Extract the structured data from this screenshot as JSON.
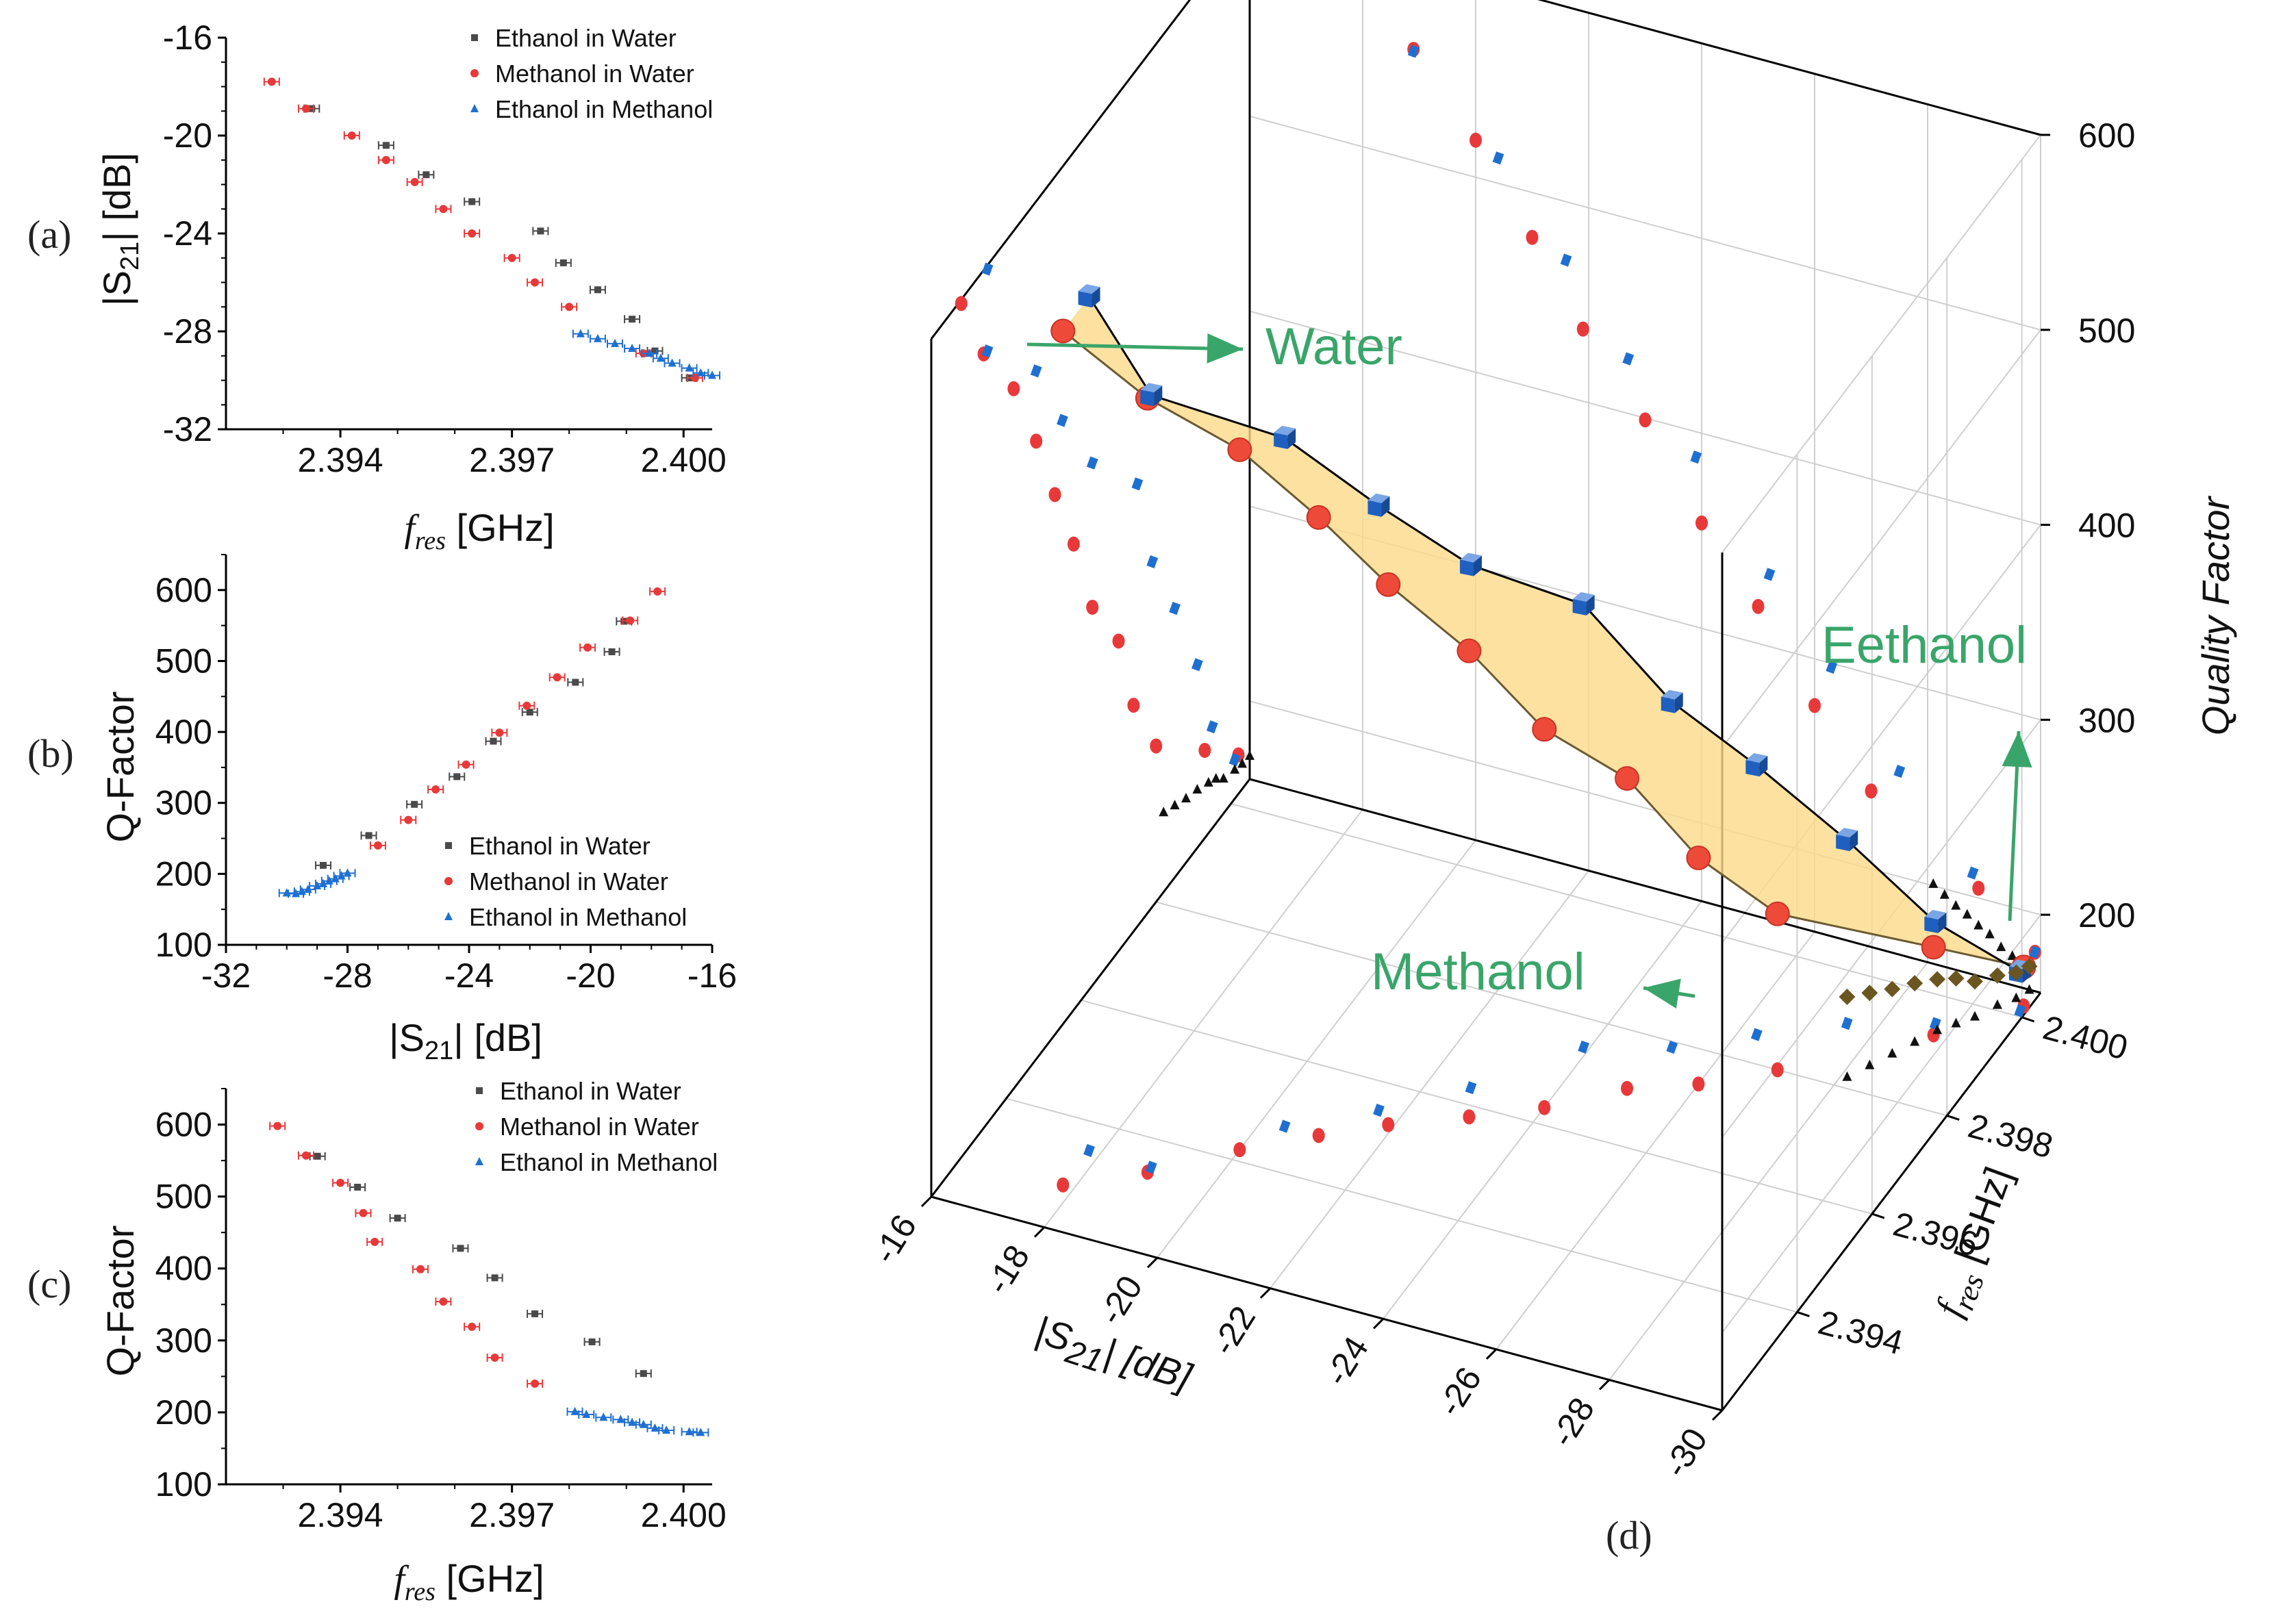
{
  "colors": {
    "ethanol_water": "#4a4a4a",
    "methanol_water": "#e8393a",
    "ethanol_methanol": "#1f6fd1",
    "annotation_green": "#3aa56a",
    "surface_fill": "#fbd98a"
  },
  "chart_data": [
    {
      "id": "a",
      "panel_label": "(a)",
      "type": "scatter",
      "xlabel_italic": "f",
      "xlabel_sub": "res",
      "xlabel_unit": "[GHz]",
      "ylabel_main": "|S",
      "ylabel_sub": "21",
      "ylabel_tail": "| [dB]",
      "xlim": [
        2.392,
        2.4005
      ],
      "ylim": [
        -32,
        -16
      ],
      "xticks": [
        "2.394",
        "2.397",
        "2.400"
      ],
      "yticks": [
        "-16",
        "-20",
        "-24",
        "-28",
        "-32"
      ],
      "legend": [
        "Ethanol in Water",
        "Methanol in Water",
        "Ethanol in Methanol"
      ],
      "series": [
        {
          "name": "Ethanol in Water",
          "x": [
            2.3935,
            2.3948,
            2.3955,
            2.3963,
            2.3975,
            2.3979,
            2.3985,
            2.3991,
            2.3995,
            2.4001
          ],
          "y": [
            -18.9,
            -20.4,
            -21.6,
            -22.7,
            -23.9,
            -25.2,
            -26.3,
            -27.5,
            -28.8,
            -29.9
          ]
        },
        {
          "name": "Methanol in Water",
          "x": [
            2.3928,
            2.3934,
            2.3942,
            2.3948,
            2.3953,
            2.3958,
            2.3963,
            2.397,
            2.3974,
            2.398,
            2.3993,
            2.4002
          ],
          "y": [
            -17.8,
            -18.9,
            -20.0,
            -21.0,
            -21.9,
            -23.0,
            -24.0,
            -25.0,
            -26.0,
            -27.0,
            -28.9,
            -29.9
          ]
        },
        {
          "name": "Ethanol in Methanol",
          "x": [
            2.3982,
            2.3985,
            2.3988,
            2.3991,
            2.3994,
            2.3996,
            2.3998,
            2.4001,
            2.4003,
            2.4005
          ],
          "y": [
            -28.1,
            -28.3,
            -28.5,
            -28.7,
            -28.9,
            -29.1,
            -29.3,
            -29.5,
            -29.7,
            -29.8
          ]
        }
      ]
    },
    {
      "id": "b",
      "panel_label": "(b)",
      "type": "scatter",
      "xlabel_main": "|S",
      "xlabel_sub": "21",
      "xlabel_tail": "| [dB]",
      "ylabel": "Q-Factor",
      "xlim": [
        -32,
        -16
      ],
      "ylim": [
        100,
        650
      ],
      "xticks": [
        "-32",
        "-28",
        "-24",
        "-20",
        "-16"
      ],
      "yticks": [
        "100",
        "200",
        "300",
        "400",
        "500",
        "600"
      ],
      "legend": [
        "Ethanol in Water",
        "Methanol in Water",
        "Ethanol in Methanol"
      ],
      "series": [
        {
          "name": "Ethanol in Water",
          "x": [
            -28.8,
            -27.3,
            -25.8,
            -24.4,
            -23.2,
            -22.0,
            -20.5,
            -19.3,
            -18.9
          ],
          "y": [
            212,
            254,
            298,
            337,
            387,
            428,
            470,
            513,
            556
          ]
        },
        {
          "name": "Methanol in Water",
          "x": [
            -17.8,
            -18.7,
            -20.1,
            -21.1,
            -22.1,
            -23.0,
            -24.1,
            -25.1,
            -26.0,
            -27.0
          ],
          "y": [
            598,
            557,
            519,
            477,
            437,
            399,
            354,
            319,
            276,
            240
          ]
        },
        {
          "name": "Ethanol in Methanol",
          "x": [
            -30.0,
            -29.7,
            -29.5,
            -29.3,
            -29.0,
            -28.8,
            -28.6,
            -28.4,
            -28.2,
            -28.0
          ],
          "y": [
            173,
            172,
            175,
            178,
            183,
            186,
            190,
            193,
            197,
            201
          ]
        }
      ]
    },
    {
      "id": "c",
      "panel_label": "(c)",
      "type": "scatter",
      "xlabel_italic": "f",
      "xlabel_sub": "res",
      "xlabel_unit": "[GHz]",
      "ylabel": "Q-Factor",
      "xlim": [
        2.392,
        2.4005
      ],
      "ylim": [
        100,
        650
      ],
      "xticks": [
        "2.394",
        "2.397",
        "2.400"
      ],
      "yticks": [
        "100",
        "200",
        "300",
        "400",
        "500",
        "600"
      ],
      "legend": [
        "Ethanol in Water",
        "Methanol in Water",
        "Ethanol in Methanol"
      ],
      "series": [
        {
          "name": "Ethanol in Water",
          "x": [
            2.3936,
            2.3943,
            2.395,
            2.3961,
            2.3967,
            2.3974,
            2.3984,
            2.3993
          ],
          "y": [
            556,
            513,
            470,
            428,
            387,
            337,
            298,
            254
          ]
        },
        {
          "name": "Methanol in Water",
          "x": [
            2.3929,
            2.3934,
            2.394,
            2.3944,
            2.3946,
            2.3954,
            2.3958,
            2.3963,
            2.3967,
            2.3974
          ],
          "y": [
            598,
            557,
            519,
            477,
            437,
            399,
            354,
            319,
            276,
            240
          ]
        },
        {
          "name": "Ethanol in Methanol",
          "x": [
            2.3981,
            2.3983,
            2.3986,
            2.3989,
            2.3991,
            2.3993,
            2.3995,
            2.3997,
            2.4001,
            2.4003
          ],
          "y": [
            201,
            197,
            193,
            190,
            186,
            183,
            178,
            175,
            173,
            172
          ]
        }
      ]
    },
    {
      "id": "d",
      "panel_label": "(d)",
      "type": "scatter",
      "projection": "3d",
      "xlabel": "|S",
      "xlabel_sub": "21",
      "xlabel_tail": "| [dB]",
      "ylabel_italic": "f",
      "ylabel_sub": "res",
      "ylabel_unit": "[GHz]",
      "zlabel": "Quality Factor",
      "xlim": [
        -16,
        -30
      ],
      "ylim": [
        2.392,
        2.4005
      ],
      "zlim": [
        160,
        600
      ],
      "xticks": [
        "-16",
        "-18",
        "-20",
        "-22",
        "-24",
        "-26",
        "-28",
        "-30"
      ],
      "yticks": [
        "2.394",
        "2.396",
        "2.398",
        "2.400"
      ],
      "zticks": [
        "200",
        "300",
        "400",
        "500",
        "600"
      ],
      "annotations": [
        "Water",
        "Eethanol",
        "Methanol"
      ],
      "series": [
        {
          "name": "Methanol in Water",
          "x": [
            -17.8,
            -18.9,
            -20.0,
            -21.0,
            -21.9,
            -23.0,
            -24.0,
            -25.0,
            -26.0,
            -27.0,
            -28.9,
            -29.9
          ],
          "y": [
            2.3928,
            2.3934,
            2.3942,
            2.3948,
            2.3953,
            2.3958,
            2.3963,
            2.397,
            2.3974,
            2.398,
            2.3993,
            2.4002
          ],
          "z": [
            598,
            557,
            519,
            477,
            437,
            399,
            354,
            319,
            276,
            240,
            205,
            180
          ]
        },
        {
          "name": "Ethanol in Water",
          "x": [
            -17.8,
            -18.9,
            -20.4,
            -21.6,
            -22.7,
            -23.9,
            -25.2,
            -26.3,
            -27.5,
            -28.8,
            -29.9
          ],
          "y": [
            2.3935,
            2.3935,
            2.3948,
            2.3955,
            2.3963,
            2.3975,
            2.3979,
            2.3985,
            2.3991,
            2.3995,
            2.4001
          ],
          "z": [
            598,
            556,
            513,
            470,
            428,
            387,
            337,
            298,
            254,
            212,
            180
          ]
        },
        {
          "name": "Ethanol in Methanol",
          "x": [
            -28.1,
            -28.3,
            -28.5,
            -28.7,
            -28.9,
            -29.1,
            -29.3,
            -29.5,
            -29.7,
            -29.8
          ],
          "y": [
            2.3982,
            2.3985,
            2.3988,
            2.3991,
            2.3994,
            2.3996,
            2.3998,
            2.4001,
            2.4003,
            2.4005
          ],
          "z": [
            201,
            197,
            193,
            190,
            186,
            183,
            178,
            175,
            173,
            172
          ]
        }
      ]
    }
  ]
}
